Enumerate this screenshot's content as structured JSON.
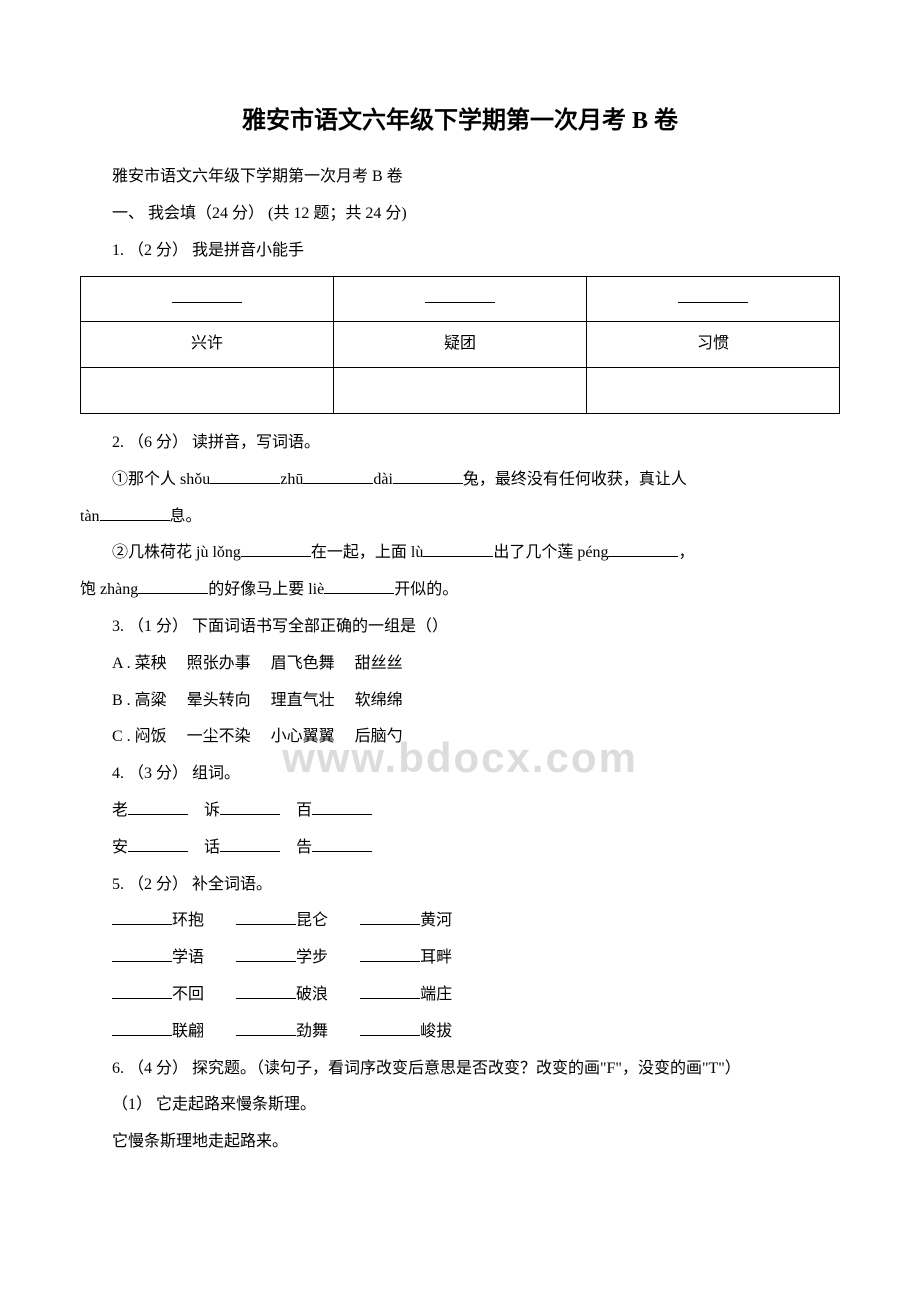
{
  "title": "雅安市语文六年级下学期第一次月考 B 卷",
  "subtitle": "雅安市语文六年级下学期第一次月考 B 卷",
  "section1": "一、 我会填（24 分） (共 12 题；共 24 分)",
  "q1": {
    "label": "1. （2 分） 我是拼音小能手",
    "cells": [
      "兴许",
      "疑团",
      "习惯"
    ]
  },
  "q2": {
    "label": "2. （6 分） 读拼音，写词语。",
    "line1_pre": "①那个人 shǒu",
    "line1_mid1": "zhū",
    "line1_mid2": "dài",
    "line1_mid3": "兔，最终没有任何收获，真让人",
    "line1_end_pre": "tàn",
    "line1_end": "息。",
    "line2_pre": "②几株荷花 jù lǒng",
    "line2_mid1": "在一起，上面 lù",
    "line2_mid2": "出了几个莲 péng",
    "line2_mid3": "，",
    "line2b_pre": "饱 zhàng",
    "line2b_mid": "的好像马上要 liè",
    "line2b_end": "开似的。"
  },
  "q3": {
    "label": "3. （1 分） 下面词语书写全部正确的一组是（）",
    "optA": "A . 菜秧　 照张办事　 眉飞色舞　 甜丝丝",
    "optB": "B . 高粱　 晕头转向　 理直气壮　 软绵绵",
    "optC": "C . 闷饭　 一尘不染　 小心翼翼　 后脑勺"
  },
  "q4": {
    "label": "4. （3 分） 组词。",
    "row1": [
      "老",
      "诉",
      "百"
    ],
    "row2": [
      "安",
      "话",
      "告"
    ]
  },
  "q5": {
    "label": "5. （2 分） 补全词语。",
    "rows": [
      [
        "环抱",
        "昆仑",
        "黄河"
      ],
      [
        "学语",
        "学步",
        "耳畔"
      ],
      [
        "不回",
        "破浪",
        "端庄"
      ],
      [
        "联翩",
        "劲舞",
        "峻拔"
      ]
    ]
  },
  "q6": {
    "label": "6. （4 分） 探究题。（读句子，看词序改变后意思是否改变？改变的画\"F\"，没变的画\"T\"）",
    "sub1": "（1） 它走起路来慢条斯理。",
    "sub1b": "它慢条斯理地走起路来。"
  },
  "watermark": "www.bdocx.com"
}
